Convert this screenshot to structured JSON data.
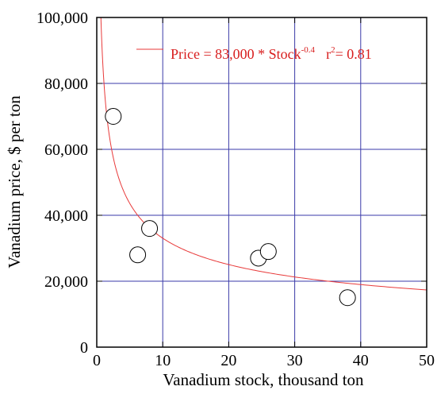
{
  "colors": {
    "grid": "#3a3aa8",
    "fit_line": "#e83a3a",
    "legend_text": "#d81e1e",
    "marker_stroke": "#000000",
    "marker_fill": "#ffffff",
    "axis": "#000000"
  },
  "chart_data": {
    "type": "scatter",
    "title": "",
    "xlabel": "Vanadium stock, thousand ton",
    "ylabel": "Vanadium price, $ per ton",
    "xlim": [
      0,
      50
    ],
    "ylim": [
      0,
      100000
    ],
    "x_ticks": [
      {
        "value": 0,
        "label": "0"
      },
      {
        "value": 10,
        "label": "10"
      },
      {
        "value": 20,
        "label": "20"
      },
      {
        "value": 30,
        "label": "30"
      },
      {
        "value": 40,
        "label": "40"
      },
      {
        "value": 50,
        "label": "50"
      }
    ],
    "y_ticks": [
      {
        "value": 0,
        "label": "0"
      },
      {
        "value": 20000,
        "label": "20,000"
      },
      {
        "value": 40000,
        "label": "40,000"
      },
      {
        "value": 60000,
        "label": "60,000"
      },
      {
        "value": 80000,
        "label": "80,000"
      },
      {
        "value": 100000,
        "label": "100,000"
      }
    ],
    "grid": true,
    "points": [
      {
        "x": 2.5,
        "y": 70000
      },
      {
        "x": 6.2,
        "y": 28000
      },
      {
        "x": 8.0,
        "y": 36000
      },
      {
        "x": 24.5,
        "y": 27000
      },
      {
        "x": 26.0,
        "y": 29000
      },
      {
        "x": 38.0,
        "y": 15000
      }
    ],
    "fit": {
      "coefficient": 83000,
      "exponent": -0.4,
      "x_start": 0.6,
      "x_end": 50
    },
    "legend": {
      "placement": "top-right",
      "prefix": "Price = 83,000 * Stock",
      "superscript": "-0.4",
      "r_label": "r",
      "r_superscript": "2",
      "r_value": "= 0.81"
    }
  }
}
